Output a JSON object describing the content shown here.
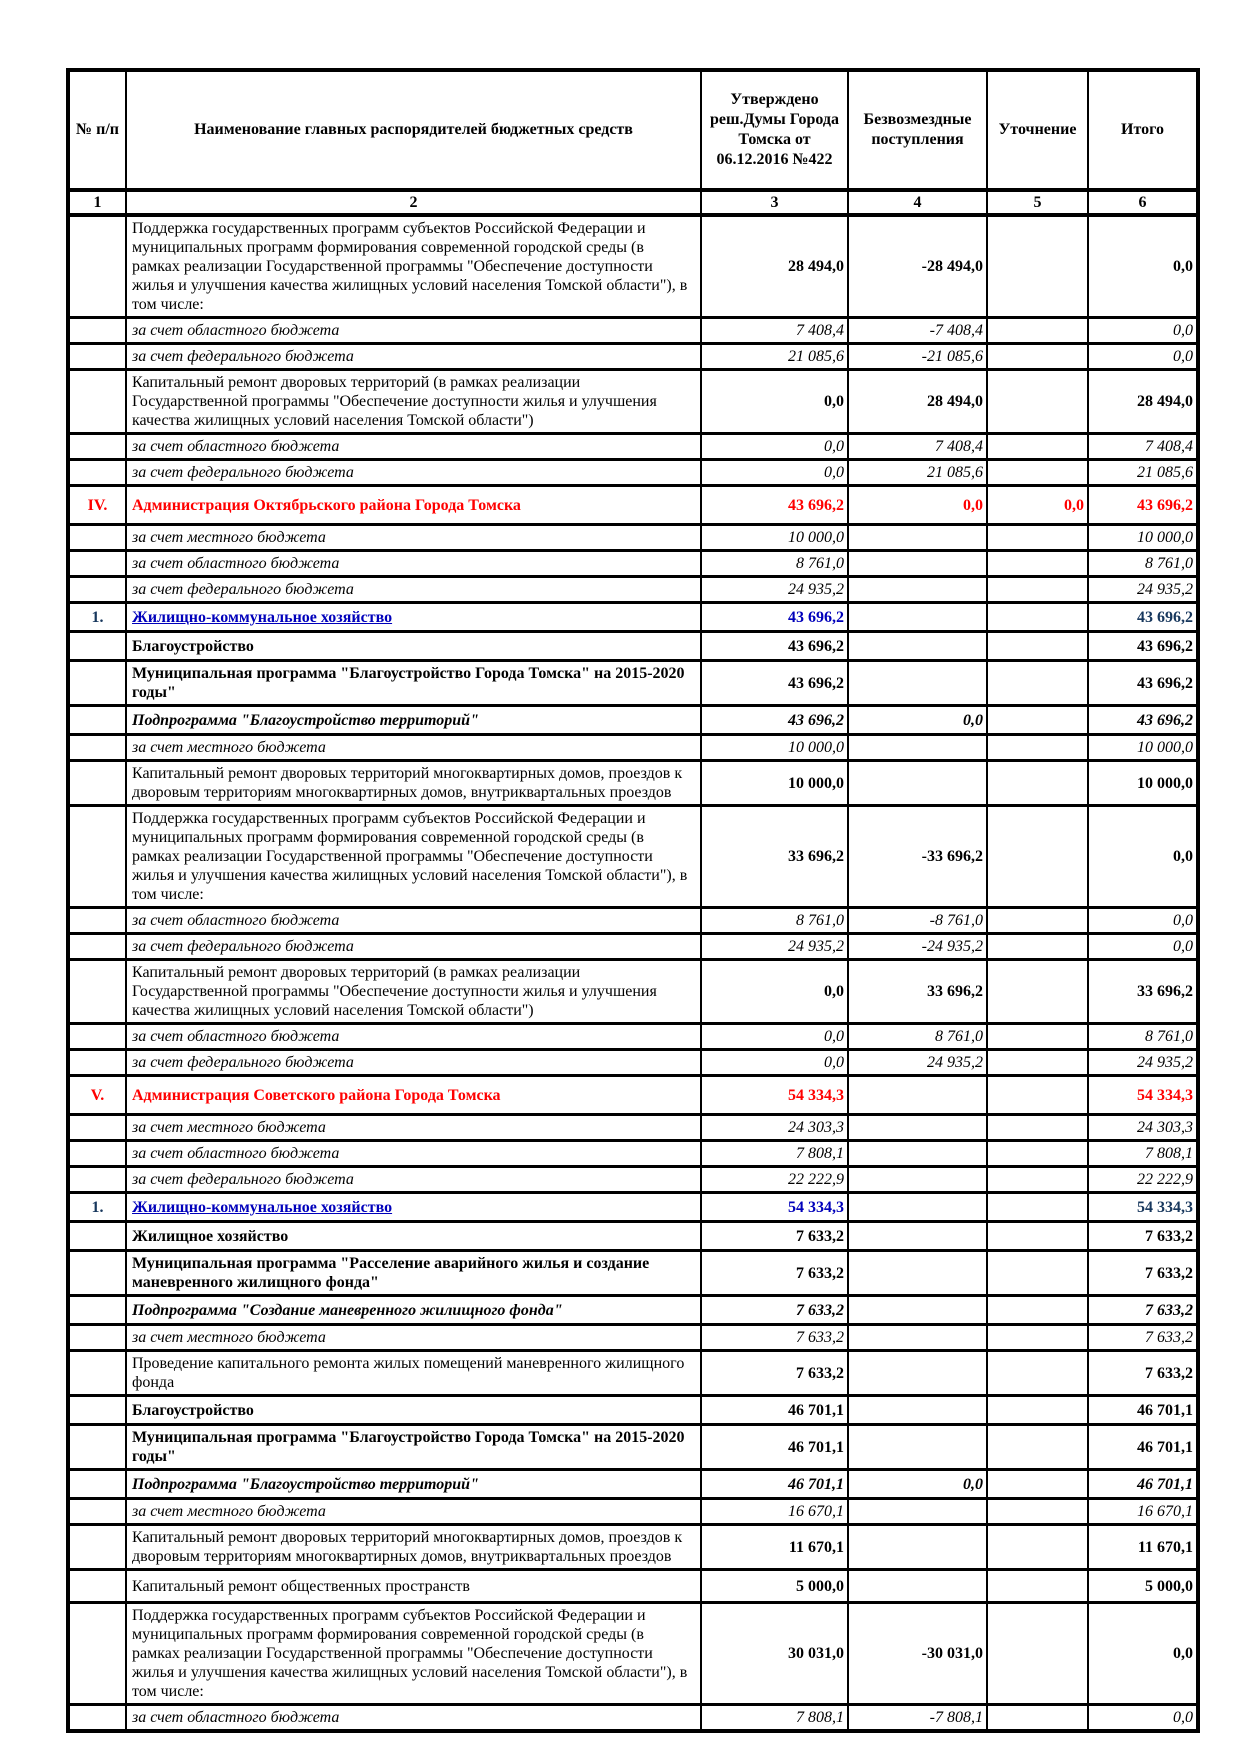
{
  "table": {
    "columns": [
      {
        "id": "num",
        "label": "№ п/п",
        "index": "1"
      },
      {
        "id": "name",
        "label": "Наименование главных распорядителей бюджетных средств",
        "index": "2"
      },
      {
        "id": "approved",
        "label": "Утверждено реш.Думы Города Томска от 06.12.2016 №422",
        "index": "3"
      },
      {
        "id": "grants",
        "label": "Безвозмездные поступления",
        "index": "4"
      },
      {
        "id": "adjustment",
        "label": "Уточнение",
        "index": "5"
      },
      {
        "id": "total",
        "label": "Итого",
        "index": "6"
      }
    ],
    "rows": [
      {
        "n": "",
        "name": "Поддержка государственных программ субъектов Российской Федерации и муниципальных программ формирования современной городской среды (в рамках реализации Государственной программы \"Обеспечение доступности жилья и улучшения качества жилищных условий населения Томской области\"), в том числе:",
        "c3": "28 494,0",
        "c4": "-28 494,0",
        "c5": "",
        "c6": "0,0",
        "style": "program"
      },
      {
        "n": "",
        "name": "за счет областного бюджета",
        "c3": "7 408,4",
        "c4": "-7 408,4",
        "c5": "",
        "c6": "0,0",
        "style": "funding"
      },
      {
        "n": "",
        "name": "за счет федерального бюджета",
        "c3": "21 085,6",
        "c4": "-21 085,6",
        "c5": "",
        "c6": "0,0",
        "style": "funding"
      },
      {
        "n": "",
        "name": "Капитальный ремонт дворовых территорий (в рамках реализации Государственной программы \"Обеспечение доступности жилья и улучшения качества жилищных условий населения Томской области\")",
        "c3": "0,0",
        "c4": "28 494,0",
        "c5": "",
        "c6": "28 494,0",
        "style": "program"
      },
      {
        "n": "",
        "name": "за счет областного бюджета",
        "c3": "0,0",
        "c4": "7 408,4",
        "c5": "",
        "c6": "7 408,4",
        "style": "funding"
      },
      {
        "n": "",
        "name": "за счет федерального бюджета",
        "c3": "0,0",
        "c4": "21 085,6",
        "c5": "",
        "c6": "21 085,6",
        "style": "funding"
      },
      {
        "n": "IV.",
        "name": "Администрация Октябрьского района Города Томска",
        "c3": "43 696,2",
        "c4": "0,0",
        "c5": "0,0",
        "c6": "43 696,2",
        "style": "section"
      },
      {
        "n": "",
        "name": "за счет местного бюджета",
        "c3": "10 000,0",
        "c4": "",
        "c5": "",
        "c6": "10 000,0",
        "style": "funding"
      },
      {
        "n": "",
        "name": "за счет областного бюджета",
        "c3": "8 761,0",
        "c4": "",
        "c5": "",
        "c6": "8 761,0",
        "style": "funding"
      },
      {
        "n": "",
        "name": "за счет федерального бюджета",
        "c3": "24 935,2",
        "c4": "",
        "c5": "",
        "c6": "24 935,2",
        "style": "funding"
      },
      {
        "n": "1.",
        "name": "Жилищно-коммунальное хозяйство",
        "c3": "43 696,2",
        "c4": "",
        "c5": "",
        "c6": "43 696,2",
        "style": "jkh"
      },
      {
        "n": "",
        "name": "Благоустройство",
        "c3": "43 696,2",
        "c4": "",
        "c5": "",
        "c6": "43 696,2",
        "style": "boldrow"
      },
      {
        "n": "",
        "name": "Муниципальная программа \"Благоустройство Города Томска\" на 2015-2020 годы\"",
        "c3": "43 696,2",
        "c4": "",
        "c5": "",
        "c6": "43 696,2",
        "style": "boldrow"
      },
      {
        "n": "",
        "name": "Подпрограмма \"Благоустройство территорий\"",
        "c3": "43 696,2",
        "c4": "0,0",
        "c5": "",
        "c6": "43 696,2",
        "style": "subprogram"
      },
      {
        "n": "",
        "name": "за счет местного бюджета",
        "c3": "10 000,0",
        "c4": "",
        "c5": "",
        "c6": "10 000,0",
        "style": "funding"
      },
      {
        "n": "",
        "name": "Капитальный ремонт дворовых территорий многоквартирных домов, проездов к дворовым территориям многоквартирных домов, внутриквартальных проездов",
        "c3": "10 000,0",
        "c4": "",
        "c5": "",
        "c6": "10 000,0",
        "style": "program"
      },
      {
        "n": "",
        "name": "Поддержка государственных программ субъектов Российской Федерации и муниципальных программ формирования современной городской среды (в рамках реализации Государственной программы \"Обеспечение доступности жилья и улучшения качества жилищных условий населения Томской области\"), в том числе:",
        "c3": "33 696,2",
        "c4": "-33 696,2",
        "c5": "",
        "c6": "0,0",
        "style": "program"
      },
      {
        "n": "",
        "name": "за счет областного бюджета",
        "c3": "8 761,0",
        "c4": "-8 761,0",
        "c5": "",
        "c6": "0,0",
        "style": "funding"
      },
      {
        "n": "",
        "name": "за счет федерального бюджета",
        "c3": "24 935,2",
        "c4": "-24 935,2",
        "c5": "",
        "c6": "0,0",
        "style": "funding"
      },
      {
        "n": "",
        "name": "Капитальный ремонт дворовых территорий (в рамках реализации Государственной программы \"Обеспечение доступности жилья и улучшения качества жилищных условий населения Томской области\")",
        "c3": "0,0",
        "c4": "33 696,2",
        "c5": "",
        "c6": "33 696,2",
        "style": "program"
      },
      {
        "n": "",
        "name": "за счет областного бюджета",
        "c3": "0,0",
        "c4": "8 761,0",
        "c5": "",
        "c6": "8 761,0",
        "style": "funding"
      },
      {
        "n": "",
        "name": "за счет федерального бюджета",
        "c3": "0,0",
        "c4": "24 935,2",
        "c5": "",
        "c6": "24 935,2",
        "style": "funding"
      },
      {
        "n": "V.",
        "name": "Администрация Советского района Города Томска",
        "c3": "54 334,3",
        "c4": "",
        "c5": "",
        "c6": "54 334,3",
        "style": "section"
      },
      {
        "n": "",
        "name": "за счет местного бюджета",
        "c3": "24 303,3",
        "c4": "",
        "c5": "",
        "c6": "24 303,3",
        "style": "funding"
      },
      {
        "n": "",
        "name": "за счет областного бюджета",
        "c3": "7 808,1",
        "c4": "",
        "c5": "",
        "c6": "7 808,1",
        "style": "funding"
      },
      {
        "n": "",
        "name": "за счет федерального бюджета",
        "c3": "22 222,9",
        "c4": "",
        "c5": "",
        "c6": "22 222,9",
        "style": "funding"
      },
      {
        "n": "1.",
        "name": "Жилищно-коммунальное хозяйство",
        "c3": "54 334,3",
        "c4": "",
        "c5": "",
        "c6": "54 334,3",
        "style": "jkh"
      },
      {
        "n": "",
        "name": "Жилищное хозяйство",
        "c3": "7 633,2",
        "c4": "",
        "c5": "",
        "c6": "7 633,2",
        "style": "boldrow"
      },
      {
        "n": "",
        "name": "Муниципальная программа \"Расселение аварийного жилья и создание маневренного жилищного фонда\"",
        "c3": "7 633,2",
        "c4": "",
        "c5": "",
        "c6": "7 633,2",
        "style": "boldrow"
      },
      {
        "n": "",
        "name": "Подпрограмма \"Создание маневренного жилищного фонда\"",
        "c3": "7 633,2",
        "c4": "",
        "c5": "",
        "c6": "7 633,2",
        "style": "subprogram"
      },
      {
        "n": "",
        "name": "за счет местного бюджета",
        "c3": "7 633,2",
        "c4": "",
        "c5": "",
        "c6": "7 633,2",
        "style": "funding"
      },
      {
        "n": "",
        "name": "Проведение капитального ремонта жилых помещений маневренного жилищного фонда",
        "c3": "7 633,2",
        "c4": "",
        "c5": "",
        "c6": "7 633,2",
        "style": "program"
      },
      {
        "n": "",
        "name": "Благоустройство",
        "c3": "46 701,1",
        "c4": "",
        "c5": "",
        "c6": "46 701,1",
        "style": "boldrow"
      },
      {
        "n": "",
        "name": "Муниципальная программа \"Благоустройство Города Томска\" на 2015-2020 годы\"",
        "c3": "46 701,1",
        "c4": "",
        "c5": "",
        "c6": "46 701,1",
        "style": "boldrow"
      },
      {
        "n": "",
        "name": "Подпрограмма \"Благоустройство территорий\"",
        "c3": "46 701,1",
        "c4": "0,0",
        "c5": "",
        "c6": "46 701,1",
        "style": "subprogram"
      },
      {
        "n": "",
        "name": "за счет местного бюджета",
        "c3": "16 670,1",
        "c4": "",
        "c5": "",
        "c6": "16 670,1",
        "style": "funding"
      },
      {
        "n": "",
        "name": "Капитальный ремонт дворовых территорий многоквартирных домов, проездов к дворовым территориям многоквартирных домов, внутриквартальных проездов",
        "c3": "11 670,1",
        "c4": "",
        "c5": "",
        "c6": "11 670,1",
        "style": "program"
      },
      {
        "n": "",
        "name": "Капитальный ремонт общественных пространств",
        "c3": "5 000,0",
        "c4": "",
        "c5": "",
        "c6": "5 000,0",
        "style": "program"
      },
      {
        "n": "",
        "name": "Поддержка государственных программ субъектов Российской Федерации и муниципальных программ формирования современной городской среды (в рамках реализации Государственной программы \"Обеспечение доступности жилья и улучшения качества жилищных условий населения Томской области\"), в том числе:",
        "c3": "30 031,0",
        "c4": "-30 031,0",
        "c5": "",
        "c6": "0,0",
        "style": "program"
      },
      {
        "n": "",
        "name": "за счет областного бюджета",
        "c3": "7 808,1",
        "c4": "-7 808,1",
        "c5": "",
        "c6": "0,0",
        "style": "funding"
      }
    ]
  },
  "colors": {
    "page_background": "#FFFFFF",
    "border": "#000000",
    "section_text": "#FF0000",
    "category_text": "#0000BB",
    "category_total_text": "#17375D"
  }
}
